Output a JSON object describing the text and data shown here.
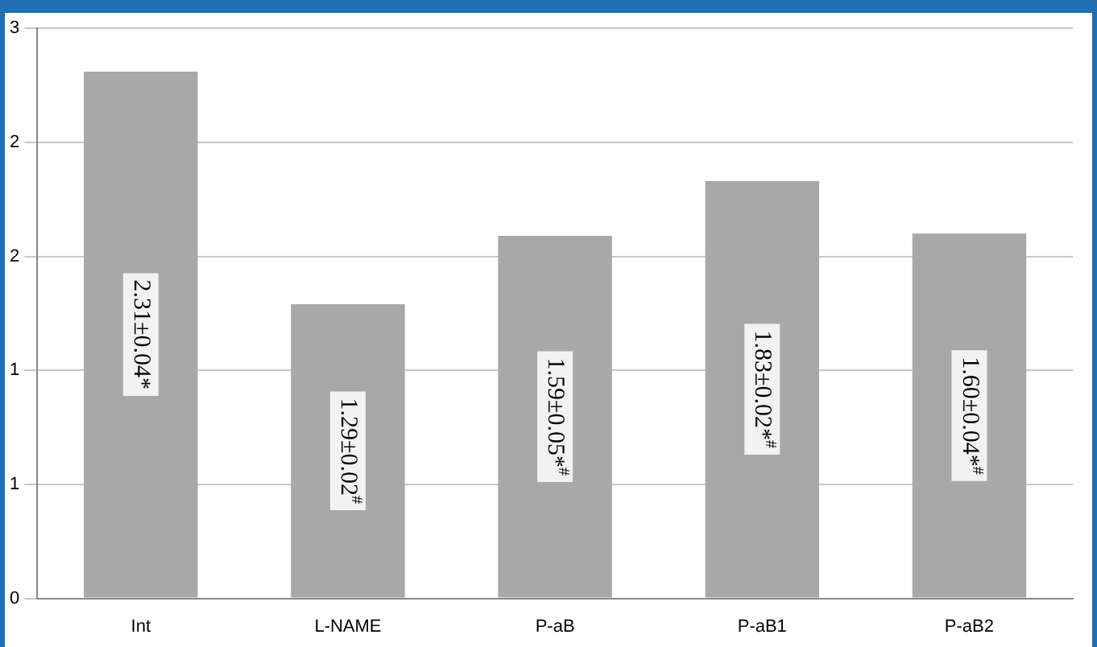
{
  "chart_data": {
    "type": "bar",
    "categories": [
      "Int",
      "L-NAME",
      "P-aB",
      "P-aB1",
      "P-aB2"
    ],
    "values": [
      2.31,
      1.29,
      1.59,
      1.83,
      1.6
    ],
    "value_labels": [
      "2.31±0.04*",
      "1.29±0.02$^{#}$",
      "1.59±0.05*$^{#}$",
      "1.83±0.02*$^{#}$",
      "1.60±0.04*$^{#}$"
    ],
    "color": "#a8a8a8",
    "ylim": [
      0,
      2.5
    ],
    "yticks": [
      0,
      {
        "value": 0.5,
        "label": "1"
      },
      1,
      {
        "value": 1.5,
        "label": "2"
      },
      2,
      {
        "value": 2.5,
        "label": "3"
      }
    ],
    "grid": "y",
    "legend": false
  }
}
